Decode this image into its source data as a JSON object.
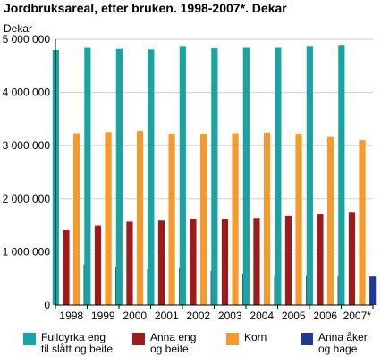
{
  "chart_data": {
    "type": "bar",
    "title": "Jordbruksareal, etter bruken. 1998-2007*. Dekar",
    "ylabel": "Dekar",
    "xlabel": "",
    "ylim": [
      0,
      5000000
    ],
    "yticks": [
      0,
      1000000,
      2000000,
      3000000,
      4000000,
      5000000
    ],
    "ytick_labels": [
      "0",
      "1 000 000",
      "2 000 000",
      "3 000 000",
      "4 000 000",
      "5 000 000"
    ],
    "categories": [
      "1998",
      "1999",
      "2000",
      "2001",
      "2002",
      "2003",
      "2004",
      "2005",
      "2006",
      "2007*"
    ],
    "grid": true,
    "legend_position": "bottom",
    "series": [
      {
        "name": "Fulldyrka eng\ntil slått og beite",
        "color": "#1aa3a3",
        "values": [
          4800000,
          4840000,
          4820000,
          4810000,
          4860000,
          4830000,
          4840000,
          4840000,
          4860000,
          4880000
        ]
      },
      {
        "name": "Anna eng\nog beite",
        "color": "#9e1b1b",
        "values": [
          1410000,
          1500000,
          1570000,
          1590000,
          1620000,
          1620000,
          1640000,
          1680000,
          1710000,
          1740000
        ]
      },
      {
        "name": "Korn",
        "color": "#f79a2e",
        "values": [
          3230000,
          3250000,
          3270000,
          3220000,
          3220000,
          3230000,
          3240000,
          3220000,
          3160000,
          3100000
        ]
      },
      {
        "name": "Anna åker\nog hage",
        "color": "#1f3a93",
        "values": [
          760000,
          720000,
          680000,
          710000,
          640000,
          590000,
          560000,
          560000,
          550000,
          550000
        ]
      }
    ]
  }
}
